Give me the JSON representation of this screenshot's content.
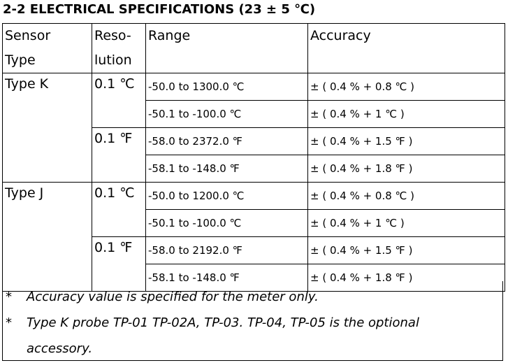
{
  "title": "2-2 ELECTRICAL SPECIFICATIONS (23 ± 5 ℃)",
  "table": {
    "header": [
      [
        "Sensor",
        "Type"
      ],
      [
        "Reso-",
        "lution"
      ],
      [
        "Range"
      ],
      [
        "Accuracy"
      ]
    ],
    "groups": [
      {
        "sensor": "Type K",
        "resolutions": [
          {
            "resolution": "0.1 ℃",
            "rows": [
              {
                "range": "-50.0 to 1300.0 ℃",
                "accuracy": "± ( 0.4 % + 0.8 ℃ )"
              },
              {
                "range": "-50.1 to -100.0 ℃",
                "accuracy": "± ( 0.4 % + 1 ℃ )"
              }
            ]
          },
          {
            "resolution": "0.1 ℉",
            "rows": [
              {
                "range": "-58.0 to 2372.0 ℉",
                "accuracy": "± ( 0.4 % + 1.5 ℉ )"
              },
              {
                "range": "-58.1 to -148.0 ℉",
                "accuracy": "± ( 0.4 % + 1.8 ℉ )"
              }
            ]
          }
        ]
      },
      {
        "sensor": "Type J",
        "resolutions": [
          {
            "resolution": "0.1 ℃",
            "rows": [
              {
                "range": "-50.0 to 1200.0 ℃",
                "accuracy": "± ( 0.4 % + 0.8 ℃ )"
              },
              {
                "range": "-50.1 to -100.0 ℃",
                "accuracy": "± ( 0.4 % + 1 ℃ )"
              }
            ]
          },
          {
            "resolution": "0.1 ℉",
            "rows": [
              {
                "range": "-58.0 to 2192.0 ℉",
                "accuracy": "± ( 0.4 % + 1.5 ℉ )"
              },
              {
                "range": "-58.1 to -148.0 ℉",
                "accuracy": "± ( 0.4 % + 1.8 ℉ )"
              }
            ]
          }
        ]
      }
    ]
  },
  "notes": [
    {
      "marker": "*",
      "text": "Accuracy value is specified for the meter only."
    },
    {
      "marker": "*",
      "text": "Type K probe TP-01 TP-02A, TP-03. TP-04, TP-05 is the optional accessory."
    }
  ]
}
